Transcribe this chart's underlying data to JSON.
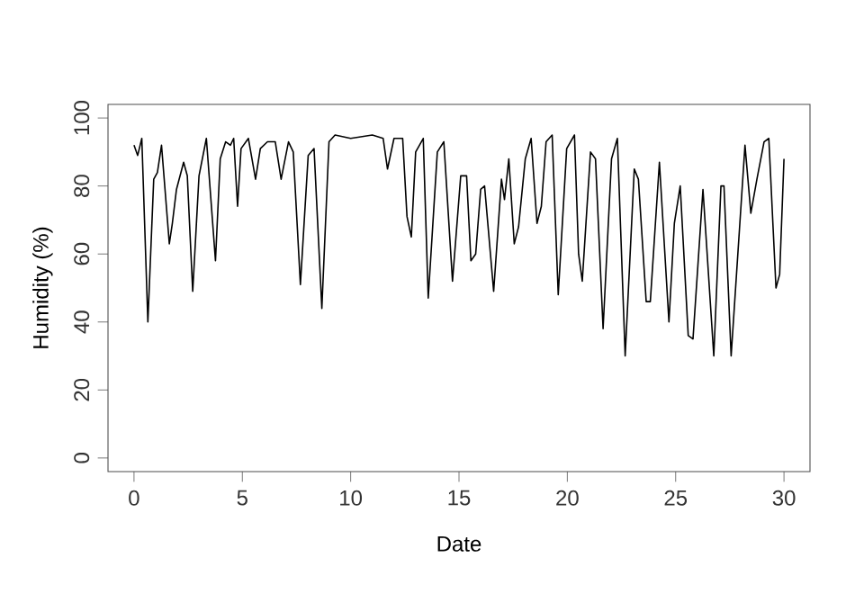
{
  "chart_data": {
    "type": "line",
    "xlabel": "Date",
    "ylabel": "Humidity (%)",
    "color": "#000000",
    "xlim": [
      -1.2,
      31.2
    ],
    "ylim": [
      -4,
      104
    ],
    "xticks": [
      0,
      5,
      10,
      15,
      20,
      25,
      30
    ],
    "yticks": [
      0,
      20,
      40,
      60,
      80,
      100
    ],
    "marker": "none",
    "line_style": "solid",
    "x": [
      0,
      0.17,
      0.36,
      0.64,
      0.91,
      1.08,
      1.27,
      1.63,
      1.77,
      1.96,
      2.29,
      2.46,
      2.71,
      3.0,
      3.34,
      3.76,
      3.98,
      4.23,
      4.45,
      4.6,
      4.78,
      4.94,
      5.28,
      5.61,
      5.83,
      6.16,
      6.52,
      6.79,
      7.13,
      7.35,
      7.68,
      8.04,
      8.31,
      8.67,
      9.0,
      9.28,
      10,
      11,
      11.5,
      11.7,
      12.0,
      12.4,
      12.6,
      12.8,
      13.0,
      13.35,
      13.58,
      14.0,
      14.3,
      14.7,
      15.08,
      15.35,
      15.55,
      15.77,
      16.0,
      16.18,
      16.6,
      16.96,
      17.1,
      17.3,
      17.55,
      17.75,
      18.06,
      18.33,
      18.6,
      18.8,
      19.02,
      19.3,
      19.58,
      19.97,
      20.33,
      20.52,
      20.69,
      21.07,
      21.3,
      21.65,
      22.04,
      22.31,
      22.67,
      23.09,
      23.28,
      23.64,
      23.83,
      24.25,
      24.69,
      24.94,
      25.21,
      25.58,
      25.8,
      26.26,
      26.76,
      27.09,
      27.23,
      27.56,
      28.2,
      28.47,
      28.75,
      29.08,
      29.3,
      29.63,
      29.8,
      30.0
    ],
    "values": [
      92,
      89,
      94,
      40,
      82,
      84,
      92,
      63,
      69,
      79,
      87,
      83,
      49,
      83,
      94,
      58,
      88,
      93,
      92,
      94,
      74,
      91,
      94,
      82,
      91,
      93,
      93,
      82,
      93,
      90,
      51,
      89,
      91,
      44,
      93,
      95,
      94,
      95,
      94,
      85,
      94,
      94,
      71,
      65,
      90,
      94,
      47,
      90,
      93,
      52,
      83,
      83,
      58,
      60,
      79,
      80,
      49,
      82,
      76,
      88,
      63,
      68,
      88,
      94,
      69,
      74,
      93,
      95,
      48,
      91,
      95,
      60,
      52,
      90,
      88,
      38,
      88,
      94,
      30,
      85,
      82,
      46,
      46,
      87,
      40,
      69,
      80,
      36,
      35,
      79,
      30,
      80,
      80,
      30,
      92,
      72,
      82,
      93,
      94,
      50,
      54,
      88
    ]
  }
}
